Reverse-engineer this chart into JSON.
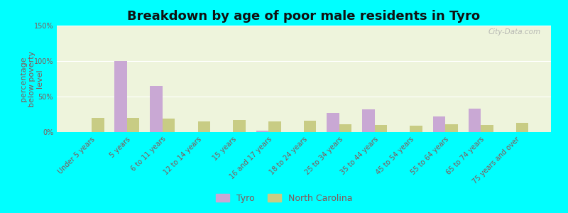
{
  "title": "Breakdown by age of poor male residents in Tyro",
  "ylabel": "percentage\nbelow poverty\nlevel",
  "categories": [
    "Under 5 years",
    "5 years",
    "6 to 11 years",
    "12 to 14 years",
    "15 years",
    "16 and 17 years",
    "18 to 24 years",
    "25 to 34 years",
    "35 to 44 years",
    "45 to 54 years",
    "55 to 64 years",
    "65 to 74 years",
    "75 years and over"
  ],
  "tyro_values": [
    0,
    100,
    65,
    0,
    0,
    2,
    0,
    27,
    32,
    0,
    22,
    33,
    0
  ],
  "nc_values": [
    20,
    20,
    19,
    15,
    17,
    15,
    16,
    11,
    10,
    9,
    11,
    10,
    13
  ],
  "tyro_color": "#c9a8d4",
  "nc_color": "#c8cc84",
  "background_color": "#00ffff",
  "plot_bg_color": "#eef4dc",
  "ylim": [
    0,
    150
  ],
  "yticks": [
    0,
    50,
    100,
    150
  ],
  "ytick_labels": [
    "0%",
    "50%",
    "100%",
    "150%"
  ],
  "bar_width": 0.35,
  "title_fontsize": 13,
  "axis_label_fontsize": 8,
  "tick_fontsize": 7,
  "legend_labels": [
    "Tyro",
    "North Carolina"
  ],
  "watermark": "City-Data.com",
  "text_color": "#885555"
}
